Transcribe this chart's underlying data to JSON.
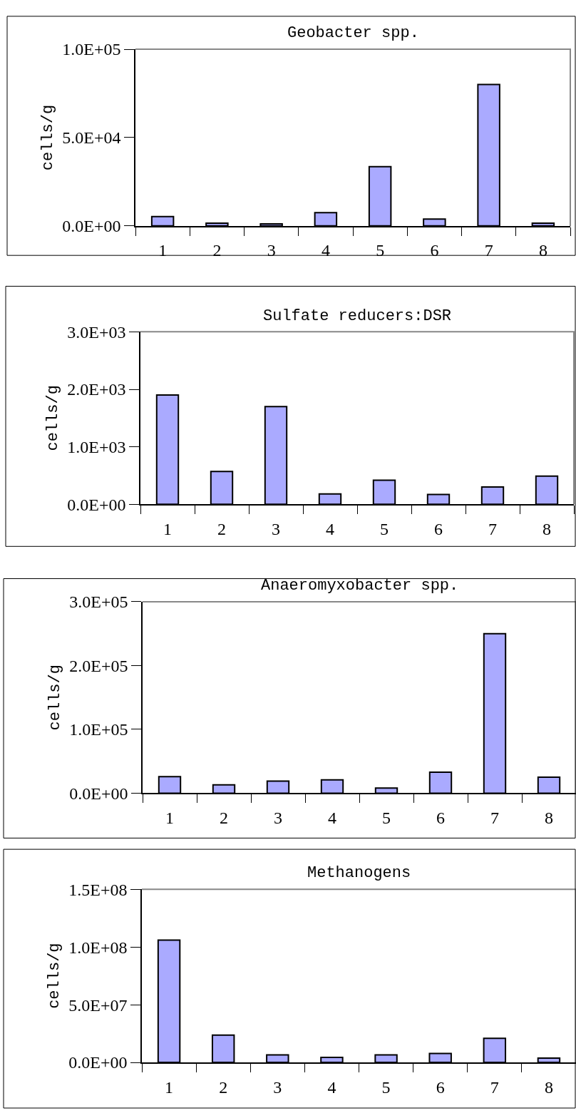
{
  "chart_data": [
    {
      "type": "bar",
      "title": "Geobacter spp.",
      "ylabel": "cells/g",
      "categories": [
        "1",
        "2",
        "3",
        "4",
        "5",
        "6",
        "7",
        "8"
      ],
      "color": "#aaaaff",
      "values": [
        5300,
        1600,
        1200,
        7500,
        33500,
        3900,
        80000,
        1600
      ],
      "ylim": [
        0,
        100000
      ],
      "yticks": [
        {
          "value": 0,
          "label": "0.0E+00"
        },
        {
          "value": 50000,
          "label": "5.0E+04"
        },
        {
          "value": 100000,
          "label": "1.0E+05"
        }
      ]
    },
    {
      "type": "bar",
      "title": "Sulfate reducers:DSR",
      "ylabel": "cells/g",
      "categories": [
        "1",
        "2",
        "3",
        "4",
        "5",
        "6",
        "7",
        "8"
      ],
      "color": "#aaaaff",
      "values": [
        1900,
        570,
        1700,
        180,
        420,
        170,
        300,
        490
      ],
      "ylim": [
        0,
        3000
      ],
      "yticks": [
        {
          "value": 0,
          "label": "0.0E+00"
        },
        {
          "value": 1000,
          "label": "1.0E+03"
        },
        {
          "value": 2000,
          "label": "2.0E+03"
        },
        {
          "value": 3000,
          "label": "3.0E+03"
        }
      ]
    },
    {
      "type": "bar",
      "title": "Anaeromyxobacter spp.",
      "ylabel": "cells/g",
      "categories": [
        "1",
        "2",
        "3",
        "4",
        "5",
        "6",
        "7",
        "8"
      ],
      "color": "#aaaaff",
      "values": [
        26000,
        13000,
        19000,
        21000,
        8000,
        33000,
        250000,
        25000
      ],
      "ylim": [
        0,
        300000
      ],
      "yticks": [
        {
          "value": 0,
          "label": "0.0E+00"
        },
        {
          "value": 100000,
          "label": "1.0E+05"
        },
        {
          "value": 200000,
          "label": "2.0E+05"
        },
        {
          "value": 300000,
          "label": "3.0E+05"
        }
      ]
    },
    {
      "type": "bar",
      "title": "Methanogens",
      "ylabel": "cells/g",
      "categories": [
        "1",
        "2",
        "3",
        "4",
        "5",
        "6",
        "7",
        "8"
      ],
      "color": "#aaaaff",
      "values": [
        106000000,
        23700000,
        6500000,
        4400000,
        6500000,
        7800000,
        20900000,
        3700000
      ],
      "ylim": [
        0,
        150000000
      ],
      "yticks": [
        {
          "value": 0,
          "label": "0.0E+00"
        },
        {
          "value": 50000000,
          "label": "5.0E+07"
        },
        {
          "value": 100000000,
          "label": "1.0E+08"
        },
        {
          "value": 150000000,
          "label": "1.5E+08"
        }
      ]
    }
  ]
}
